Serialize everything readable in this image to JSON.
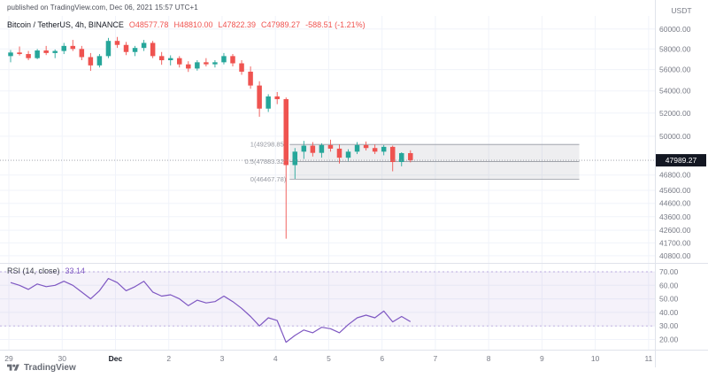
{
  "header": {
    "published": "published on TradingView.com, Dec 06, 2021 15:57 UTC+1"
  },
  "legend": {
    "symbol": "Bitcoin / TetherUS, 4h, BINANCE",
    "o": "O48577.78",
    "h": "H48810.00",
    "l": "L47822.39",
    "c": "C47989.27",
    "change": "-588.51 (-1.21%)"
  },
  "rsi_legend": {
    "title": "RSI (14, close)",
    "value": "33.14"
  },
  "price_axis": {
    "currency": "USDT"
  },
  "footer": {
    "brand": "TradingView"
  },
  "colors": {
    "up": "#26a69a",
    "down": "#ef5350",
    "rsi_line": "#7e57c2",
    "grid": "#f0f3fa",
    "separator": "#e0e3eb",
    "axis_text": "#787b86",
    "axis_text_dark": "#131722",
    "fib": "#9598a1",
    "fib_fill": "rgba(149,152,161,0.16)",
    "band_fill": "rgba(126,87,194,0.08)",
    "band_line": "rgba(126,87,194,0.45)",
    "price_line": "#9598a1",
    "badge_bg": "#131722",
    "badge_text": "#ffffff"
  },
  "chart_data": [
    {
      "type": "candlestick",
      "title": "Bitcoin / TetherUS, 4h, BINANCE",
      "symbol": "Bitcoin / TetherUS",
      "interval": "4h",
      "exchange": "BINANCE",
      "scale": "log",
      "last_price": 47989.27,
      "last_change": -588.51,
      "last_change_pct": -1.21,
      "y_ticks": [
        60000,
        58000,
        56000,
        54000,
        52000,
        50000,
        46800,
        45600,
        44600,
        43600,
        42600,
        41700,
        40800
      ],
      "x_ticks": [
        {
          "label": "29",
          "index": 0
        },
        {
          "label": "30",
          "index": 6
        },
        {
          "label": "Dec",
          "index": 12
        },
        {
          "label": "2",
          "index": 18
        },
        {
          "label": "3",
          "index": 24
        },
        {
          "label": "4",
          "index": 30
        },
        {
          "label": "5",
          "index": 36
        },
        {
          "label": "6",
          "index": 42
        },
        {
          "label": "7",
          "index": 48
        },
        {
          "label": "8",
          "index": 54
        },
        {
          "label": "9",
          "index": 60
        },
        {
          "label": "10",
          "index": 66
        },
        {
          "label": "11",
          "index": 72
        }
      ],
      "fib": {
        "x1_index": 31.4,
        "x2_index": 64,
        "levels": [
          {
            "label": "1",
            "price": 49298.85
          },
          {
            "label": "0.5",
            "price": 47883.32
          },
          {
            "label": "0",
            "price": 46467.78
          }
        ]
      },
      "candles": [
        [
          57300,
          57900,
          56700,
          57650
        ],
        [
          57650,
          58250,
          57350,
          57500
        ],
        [
          57500,
          57800,
          56900,
          57100
        ],
        [
          57100,
          58000,
          57000,
          57850
        ],
        [
          57850,
          58300,
          57400,
          57600
        ],
        [
          57600,
          57950,
          57100,
          57800
        ],
        [
          57800,
          58600,
          57500,
          58300
        ],
        [
          58300,
          58900,
          57800,
          58000
        ],
        [
          58000,
          58300,
          56900,
          57200
        ],
        [
          57200,
          57600,
          55875,
          56400
        ],
        [
          56400,
          57500,
          56200,
          57300
        ],
        [
          57300,
          59100,
          57100,
          58800
        ],
        [
          58800,
          59200,
          58100,
          58400
        ],
        [
          58400,
          58700,
          57400,
          57700
        ],
        [
          57700,
          58300,
          57300,
          58100
        ],
        [
          58100,
          58900,
          57800,
          58600
        ],
        [
          58600,
          58800,
          57100,
          57300
        ],
        [
          57300,
          57700,
          56458,
          56900
        ],
        [
          56900,
          57375,
          56400,
          57100
        ],
        [
          57100,
          57300,
          56200,
          56500
        ],
        [
          56500,
          56800,
          55777,
          56100
        ],
        [
          56100,
          56900,
          55900,
          56700
        ],
        [
          56700,
          57100,
          56300,
          56507
        ],
        [
          56507,
          56900,
          56200,
          56700
        ],
        [
          56700,
          57600,
          56500,
          57300
        ],
        [
          57300,
          57500,
          56300,
          56600
        ],
        [
          56600,
          56900,
          55500,
          55800
        ],
        [
          55800,
          56300,
          54200,
          54500
        ],
        [
          54500,
          54900,
          51680,
          52400
        ],
        [
          52400,
          53700,
          52100,
          53500
        ],
        [
          53500,
          53900,
          52800,
          53250
        ],
        [
          53250,
          53400,
          42000,
          47600
        ],
        [
          47600,
          49000,
          46500,
          48700
        ],
        [
          48700,
          49600,
          48100,
          49200
        ],
        [
          49200,
          49500,
          48300,
          48600
        ],
        [
          48600,
          49400,
          48200,
          49250
        ],
        [
          49250,
          49700,
          48700,
          48950
        ],
        [
          48950,
          49300,
          47727,
          48200
        ],
        [
          48200,
          48900,
          47900,
          48700
        ],
        [
          48700,
          49500,
          48500,
          49250
        ],
        [
          49250,
          49550,
          48800,
          49000
        ],
        [
          49000,
          49300,
          48500,
          48700
        ],
        [
          48700,
          49250,
          48400,
          49100
        ],
        [
          49100,
          49200,
          47100,
          47850
        ],
        [
          47850,
          48650,
          47500,
          48577.78
        ],
        [
          48577.78,
          48810,
          47822.39,
          47989.27
        ]
      ]
    },
    {
      "type": "line",
      "title": "RSI (14, close)",
      "last_value": 33.14,
      "band": [
        30,
        70
      ],
      "y_ticks": [
        70,
        60,
        50,
        40,
        30,
        20
      ],
      "values": [
        62,
        60,
        57,
        61,
        59,
        60,
        63,
        60,
        55,
        50,
        56,
        65,
        62,
        56,
        59,
        63,
        55,
        52,
        53,
        50,
        45,
        49,
        47,
        48,
        52,
        48,
        43,
        37,
        30,
        36,
        34,
        18,
        23,
        27,
        25,
        29,
        28,
        25,
        31,
        36,
        38,
        36,
        41,
        33,
        37,
        33.14
      ]
    }
  ]
}
